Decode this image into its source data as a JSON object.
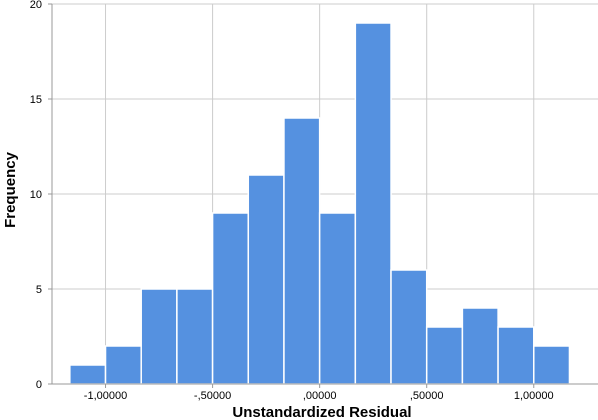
{
  "chart_data": {
    "type": "bar",
    "subtype": "histogram",
    "xlabel": "Unstandardized Residual",
    "ylabel": "Frequency",
    "xlim": [
      -1.25,
      1.3
    ],
    "ylim": [
      0,
      20
    ],
    "bin_width": 0.1667,
    "bin_starts": [
      -1.1667,
      -1.0,
      -0.8333,
      -0.6667,
      -0.5,
      -0.3333,
      -0.1667,
      0.0,
      0.1667,
      0.3333,
      0.5,
      0.6667,
      0.8333,
      1.0
    ],
    "values": [
      1,
      2,
      5,
      5,
      9,
      11,
      14,
      9,
      19,
      6,
      3,
      4,
      3,
      2
    ],
    "x_ticks": [
      {
        "value": -1.0,
        "label": "-1,00000"
      },
      {
        "value": -0.5,
        "label": "-,50000"
      },
      {
        "value": 0.0,
        "label": ",00000"
      },
      {
        "value": 0.5,
        "label": ",50000"
      },
      {
        "value": 1.0,
        "label": "1,00000"
      }
    ],
    "y_ticks": [
      {
        "value": 0,
        "label": "0"
      },
      {
        "value": 5,
        "label": "5"
      },
      {
        "value": 10,
        "label": "10"
      },
      {
        "value": 15,
        "label": "15"
      },
      {
        "value": 20,
        "label": "20"
      }
    ],
    "grid": true,
    "colors": {
      "bar_fill": "#5591E0",
      "bar_edge": "#ffffff",
      "grid": "#cccccc",
      "axis": "#999999"
    }
  }
}
